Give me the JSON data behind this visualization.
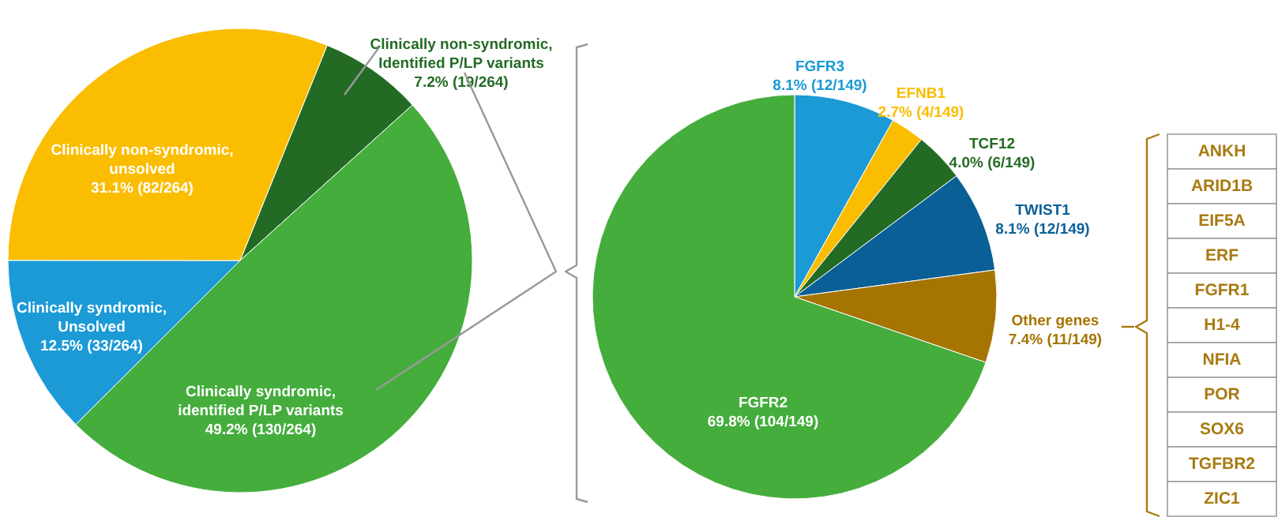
{
  "chart_data": [
    {
      "type": "pie",
      "categories": [
        "Clinically non-syndromic, Identified P/LP variants",
        "Clinically syndromic, identified P/LP variants",
        "Clinically syndromic, Unsolved",
        "Clinically non-syndromic, unsolved"
      ],
      "values": [
        7.2,
        49.2,
        12.5,
        31.1
      ],
      "colors": [
        "#236b24",
        "#44ad3c",
        "#1b9ad6",
        "#fbbd00"
      ],
      "value_labels": [
        "7.2% (19/264)",
        "49.2% (130/264)",
        "12.5% (33/264)",
        "31.1% (82/264)"
      ]
    },
    {
      "type": "pie",
      "categories": [
        "FGFR3",
        "EFNB1",
        "TCF12",
        "TWIST1",
        "Other genes",
        "FGFR2"
      ],
      "values": [
        8.1,
        2.7,
        4.0,
        8.1,
        7.4,
        69.8
      ],
      "colors": [
        "#1b9ad6",
        "#fbbd00",
        "#236b24",
        "#0a5f97",
        "#a67400",
        "#44ad3c"
      ],
      "value_labels": [
        "8.1% (12/149)",
        "2.7% (4/149)",
        "4.0% (6/149)",
        "8.1% (12/149)",
        "7.4% (11/149)",
        "69.8% (104/149)"
      ]
    },
    {
      "type": "other",
      "categories": [
        "ANKH",
        "ARID1B",
        "EIF5A",
        "ERF",
        "FGFR1",
        "H1-4",
        "NFIA",
        "POR",
        "SOX6",
        "TGFBR2",
        "ZIC1"
      ],
      "color": "#a87a10"
    }
  ]
}
